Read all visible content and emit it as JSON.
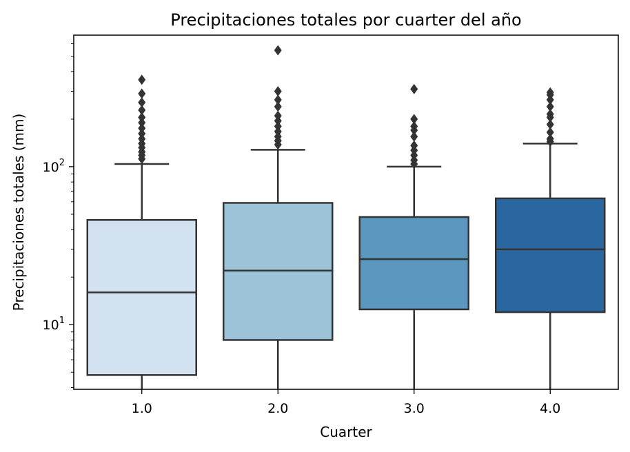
{
  "chart_data": {
    "type": "box",
    "title": "Precipitaciones totales por cuarter del año",
    "xlabel": "Cuarter",
    "ylabel": "Precipitaciones totales (mm)",
    "yscale": "log",
    "ylim": [
      3.9,
      680
    ],
    "y_major_ticks": [
      {
        "value": 10,
        "base": "10",
        "exp": "1"
      },
      {
        "value": 100,
        "base": "10",
        "exp": "2"
      }
    ],
    "categories": [
      "1.0",
      "2.0",
      "3.0",
      "4.0"
    ],
    "colors": [
      "#d3e2f1",
      "#9dc3d8",
      "#5c97bf",
      "#2a67a0"
    ],
    "edge_color": "#333333",
    "boxes": [
      {
        "category": "1.0",
        "q1": 4.8,
        "median": 16,
        "q3": 46,
        "whisker_low": 3.9,
        "whisker_high": 104,
        "outliers": [
          112,
          118,
          124,
          132,
          140,
          150,
          162,
          175,
          190,
          205,
          228,
          255,
          290,
          355
        ]
      },
      {
        "category": "2.0",
        "q1": 8,
        "median": 22,
        "q3": 59,
        "whisker_low": 3.9,
        "whisker_high": 128,
        "outliers": [
          138,
          146,
          155,
          167,
          180,
          195,
          210,
          240,
          265,
          300,
          545
        ]
      },
      {
        "category": "3.0",
        "q1": 12.5,
        "median": 26,
        "q3": 48,
        "whisker_low": 3.9,
        "whisker_high": 100,
        "outliers": [
          104,
          110,
          118,
          127,
          136,
          155,
          170,
          180,
          200,
          310
        ]
      },
      {
        "category": "4.0",
        "q1": 12,
        "median": 30,
        "q3": 63,
        "whisker_low": 3.9,
        "whisker_high": 140,
        "outliers": [
          144,
          150,
          165,
          185,
          205,
          215,
          240,
          265,
          285,
          295
        ]
      }
    ],
    "grid": false,
    "legend": "none"
  }
}
